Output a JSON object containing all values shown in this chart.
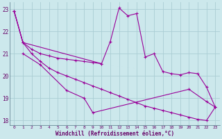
{
  "xlabel": "Windchill (Refroidissement éolien,°C)",
  "background_color": "#cce8ec",
  "grid_color": "#aacdd4",
  "line_color": "#990099",
  "xlim": [
    -0.5,
    23.5
  ],
  "ylim": [
    17.8,
    23.3
  ],
  "yticks": [
    18,
    19,
    20,
    21,
    22,
    23
  ],
  "xticks": [
    0,
    1,
    2,
    3,
    4,
    5,
    6,
    7,
    8,
    9,
    10,
    11,
    12,
    13,
    14,
    15,
    16,
    17,
    18,
    19,
    20,
    21,
    22,
    23
  ],
  "line1_x": [
    0,
    1,
    2,
    3,
    4,
    5,
    6,
    7,
    8,
    9,
    10
  ],
  "line1_y": [
    22.9,
    21.5,
    21.2,
    21.0,
    20.9,
    20.8,
    20.75,
    20.7,
    20.65,
    20.6,
    20.55
  ],
  "line2_x": [
    1,
    3,
    6,
    8,
    9,
    20,
    22,
    23
  ],
  "line2_y": [
    21.0,
    20.5,
    19.35,
    19.0,
    18.35,
    19.4,
    18.85,
    18.6
  ],
  "line3_x": [
    0,
    1,
    10,
    11,
    12,
    13,
    14,
    15,
    16,
    17,
    18,
    19,
    20,
    21,
    22,
    23
  ],
  "line3_y": [
    22.9,
    21.5,
    20.55,
    21.55,
    23.05,
    22.7,
    22.8,
    20.85,
    21.0,
    20.2,
    20.1,
    20.05,
    20.15,
    20.1,
    19.5,
    18.6
  ],
  "line4_x": [
    0,
    1,
    2,
    3,
    4,
    5,
    6,
    7,
    8,
    9,
    10,
    11,
    12,
    13,
    14,
    15,
    16,
    17,
    18,
    19,
    20,
    21,
    22,
    23
  ],
  "line4_y": [
    22.9,
    21.5,
    21.0,
    20.65,
    20.35,
    20.15,
    20.0,
    19.85,
    19.7,
    19.55,
    19.4,
    19.25,
    19.1,
    18.95,
    18.8,
    18.65,
    18.55,
    18.45,
    18.35,
    18.25,
    18.15,
    18.05,
    18.0,
    18.6
  ]
}
